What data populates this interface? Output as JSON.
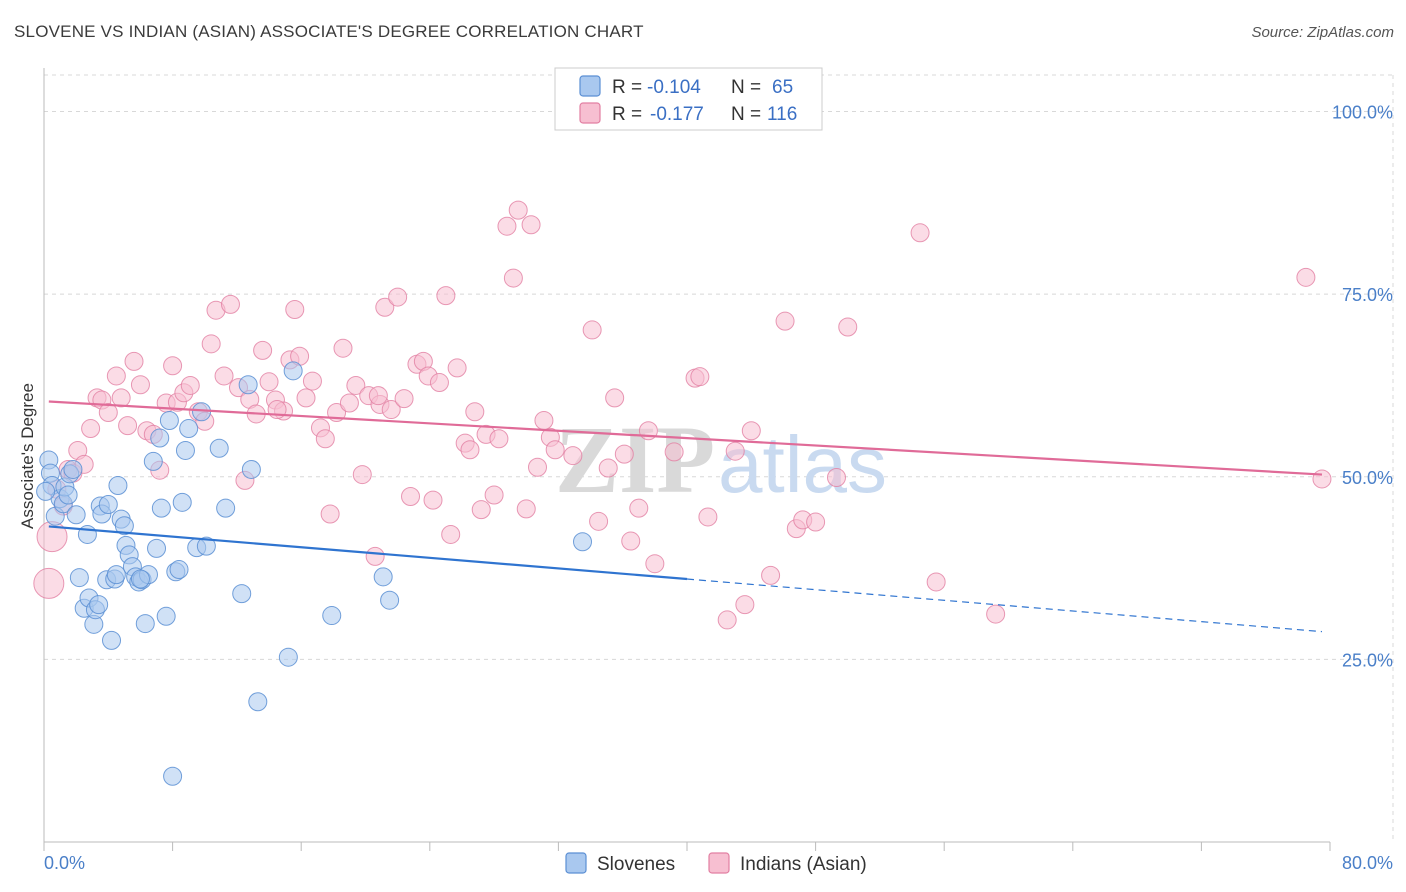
{
  "title": "SLOVENE VS INDIAN (ASIAN) ASSOCIATE'S DEGREE CORRELATION CHART",
  "source": "Source: ZipAtlas.com",
  "watermark": {
    "zip": "ZIP",
    "atlas": "atlas"
  },
  "legend": {
    "row1": {
      "r_label": "R = ",
      "r_value": "-0.104",
      "n_label": "N = ",
      "n_value": "65"
    },
    "row2": {
      "r_label": "R = ",
      "r_value": "-0.177",
      "n_label": "N = ",
      "n_value": "116"
    }
  },
  "bottom_legend": {
    "series1": "Slovenes",
    "series2": "Indians (Asian)"
  },
  "colors": {
    "blue_fill": "#a9c8ef",
    "blue_stroke": "#5b8fd4",
    "blue_line": "#2f74d0",
    "pink_fill": "#f7bfd1",
    "pink_stroke": "#e27fa2",
    "pink_line": "#e06b98",
    "grid": "#d8d8d8",
    "tick_text": "#4a7fc8"
  },
  "chart_data": {
    "type": "scatter",
    "title": "SLOVENE VS INDIAN (ASIAN) ASSOCIATE'S DEGREE CORRELATION CHART",
    "xlabel": "",
    "ylabel": "Associate's Degree",
    "xlim": [
      0,
      80
    ],
    "ylim": [
      0,
      105
    ],
    "x_tick_labels": [
      "0.0%",
      "80.0%"
    ],
    "y_ticks": [
      25,
      50,
      75,
      100
    ],
    "y_tick_labels": [
      "25.0%",
      "50.0%",
      "75.0%",
      "100.0%"
    ],
    "series": [
      {
        "name": "Slovenes",
        "R": -0.104,
        "N": 65,
        "trend": {
          "x0": 0.3,
          "y0": 43.2,
          "x1": 40,
          "y1": 36.0,
          "dash_x1": 79.5,
          "dash_y1": 28.8
        },
        "points": [
          [
            0.3,
            52.3
          ],
          [
            0.4,
            50.5
          ],
          [
            0.5,
            48.8
          ],
          [
            0.7,
            44.6
          ],
          [
            1.0,
            47.0
          ],
          [
            1.2,
            46.3
          ],
          [
            1.3,
            48.6
          ],
          [
            1.5,
            47.5
          ],
          [
            1.6,
            50.4
          ],
          [
            1.8,
            51.0
          ],
          [
            2.0,
            44.8
          ],
          [
            2.2,
            36.2
          ],
          [
            2.5,
            32.0
          ],
          [
            2.7,
            42.1
          ],
          [
            2.8,
            33.4
          ],
          [
            3.1,
            29.8
          ],
          [
            3.2,
            31.8
          ],
          [
            3.4,
            32.5
          ],
          [
            3.5,
            46.0
          ],
          [
            3.6,
            44.9
          ],
          [
            3.9,
            35.9
          ],
          [
            4.0,
            46.2
          ],
          [
            4.2,
            27.6
          ],
          [
            4.4,
            36.0
          ],
          [
            4.5,
            36.6
          ],
          [
            4.6,
            48.8
          ],
          [
            4.8,
            44.2
          ],
          [
            5.0,
            43.3
          ],
          [
            5.1,
            40.6
          ],
          [
            5.3,
            39.3
          ],
          [
            5.5,
            37.7
          ],
          [
            5.7,
            36.3
          ],
          [
            5.9,
            35.6
          ],
          [
            6.1,
            35.9
          ],
          [
            6.3,
            29.9
          ],
          [
            6.5,
            36.6
          ],
          [
            6.8,
            52.1
          ],
          [
            7.0,
            40.2
          ],
          [
            7.2,
            55.3
          ],
          [
            7.3,
            45.7
          ],
          [
            7.6,
            30.9
          ],
          [
            7.8,
            57.7
          ],
          [
            8.0,
            9.0
          ],
          [
            8.2,
            37.0
          ],
          [
            8.4,
            37.3
          ],
          [
            8.6,
            46.5
          ],
          [
            8.8,
            53.6
          ],
          [
            9.0,
            56.6
          ],
          [
            9.5,
            40.3
          ],
          [
            9.8,
            58.9
          ],
          [
            10.1,
            40.5
          ],
          [
            10.9,
            53.9
          ],
          [
            11.3,
            45.7
          ],
          [
            12.3,
            34.0
          ],
          [
            12.7,
            62.6
          ],
          [
            12.9,
            51.0
          ],
          [
            13.3,
            19.2
          ],
          [
            15.2,
            25.3
          ],
          [
            15.5,
            64.5
          ],
          [
            17.9,
            31.0
          ],
          [
            21.1,
            36.3
          ],
          [
            21.5,
            33.1
          ],
          [
            33.5,
            41.1
          ],
          [
            0.1,
            48.0
          ],
          [
            6.0,
            36.0
          ]
        ]
      },
      {
        "name": "Indians (Asian)",
        "R": -0.177,
        "N": 116,
        "trend": {
          "x0": 0.3,
          "y0": 60.3,
          "x1": 79.5,
          "y1": 50.3
        },
        "points": [
          [
            0.5,
            41.8
          ],
          [
            0.3,
            35.4
          ],
          [
            0.8,
            48.3
          ],
          [
            1.2,
            46.0
          ],
          [
            1.5,
            51.0
          ],
          [
            1.8,
            50.5
          ],
          [
            2.1,
            53.6
          ],
          [
            2.5,
            51.7
          ],
          [
            2.9,
            56.6
          ],
          [
            3.3,
            60.8
          ],
          [
            3.6,
            60.5
          ],
          [
            4.0,
            58.8
          ],
          [
            4.5,
            63.8
          ],
          [
            4.8,
            60.8
          ],
          [
            5.2,
            57.0
          ],
          [
            5.6,
            65.8
          ],
          [
            6.0,
            62.6
          ],
          [
            6.4,
            56.3
          ],
          [
            6.8,
            55.8
          ],
          [
            7.2,
            50.9
          ],
          [
            7.6,
            60.1
          ],
          [
            8.0,
            65.2
          ],
          [
            8.3,
            60.2
          ],
          [
            8.7,
            61.5
          ],
          [
            9.1,
            62.5
          ],
          [
            9.6,
            58.9
          ],
          [
            10.0,
            57.6
          ],
          [
            10.4,
            68.2
          ],
          [
            10.7,
            72.8
          ],
          [
            11.2,
            63.8
          ],
          [
            11.6,
            73.6
          ],
          [
            12.1,
            62.2
          ],
          [
            12.5,
            49.5
          ],
          [
            12.8,
            60.6
          ],
          [
            13.2,
            58.6
          ],
          [
            13.6,
            67.3
          ],
          [
            14.0,
            63.0
          ],
          [
            14.4,
            60.5
          ],
          [
            14.9,
            59.0
          ],
          [
            15.3,
            66.0
          ],
          [
            15.6,
            72.9
          ],
          [
            15.9,
            66.5
          ],
          [
            16.3,
            60.8
          ],
          [
            16.7,
            63.1
          ],
          [
            17.2,
            56.7
          ],
          [
            17.5,
            55.2
          ],
          [
            17.8,
            44.9
          ],
          [
            18.2,
            58.8
          ],
          [
            18.6,
            67.6
          ],
          [
            19.0,
            60.1
          ],
          [
            19.4,
            62.5
          ],
          [
            19.8,
            50.3
          ],
          [
            20.2,
            61.1
          ],
          [
            20.6,
            39.1
          ],
          [
            20.9,
            59.9
          ],
          [
            21.2,
            73.2
          ],
          [
            21.6,
            59.2
          ],
          [
            22.0,
            74.6
          ],
          [
            22.4,
            60.7
          ],
          [
            22.8,
            47.3
          ],
          [
            23.2,
            65.4
          ],
          [
            23.6,
            65.8
          ],
          [
            23.9,
            63.8
          ],
          [
            24.2,
            46.8
          ],
          [
            24.6,
            62.9
          ],
          [
            25.0,
            74.8
          ],
          [
            25.3,
            42.1
          ],
          [
            25.7,
            64.9
          ],
          [
            26.2,
            54.6
          ],
          [
            26.5,
            53.7
          ],
          [
            26.8,
            58.9
          ],
          [
            27.2,
            45.5
          ],
          [
            27.5,
            55.8
          ],
          [
            28.0,
            47.5
          ],
          [
            28.3,
            55.2
          ],
          [
            28.8,
            84.3
          ],
          [
            29.2,
            77.2
          ],
          [
            29.5,
            86.5
          ],
          [
            30.0,
            45.6
          ],
          [
            30.3,
            84.5
          ],
          [
            30.7,
            51.3
          ],
          [
            31.1,
            57.7
          ],
          [
            31.5,
            55.4
          ],
          [
            31.8,
            53.7
          ],
          [
            32.9,
            52.9
          ],
          [
            34.1,
            70.1
          ],
          [
            34.5,
            43.9
          ],
          [
            35.1,
            51.2
          ],
          [
            35.5,
            60.8
          ],
          [
            36.1,
            53.1
          ],
          [
            36.5,
            41.2
          ],
          [
            37.0,
            45.7
          ],
          [
            37.6,
            56.3
          ],
          [
            38.0,
            38.1
          ],
          [
            39.2,
            53.4
          ],
          [
            40.5,
            63.5
          ],
          [
            40.8,
            63.7
          ],
          [
            41.3,
            44.5
          ],
          [
            42.5,
            30.4
          ],
          [
            43.0,
            53.5
          ],
          [
            43.6,
            32.5
          ],
          [
            44.0,
            56.3
          ],
          [
            45.2,
            36.5
          ],
          [
            46.1,
            71.3
          ],
          [
            46.8,
            42.9
          ],
          [
            47.2,
            44.1
          ],
          [
            48.0,
            43.8
          ],
          [
            49.3,
            49.9
          ],
          [
            50.0,
            70.5
          ],
          [
            54.5,
            83.4
          ],
          [
            55.5,
            35.6
          ],
          [
            59.2,
            31.2
          ],
          [
            79.5,
            49.7
          ],
          [
            78.5,
            77.3
          ],
          [
            20.8,
            61.1
          ],
          [
            14.5,
            59.2
          ]
        ]
      }
    ]
  }
}
